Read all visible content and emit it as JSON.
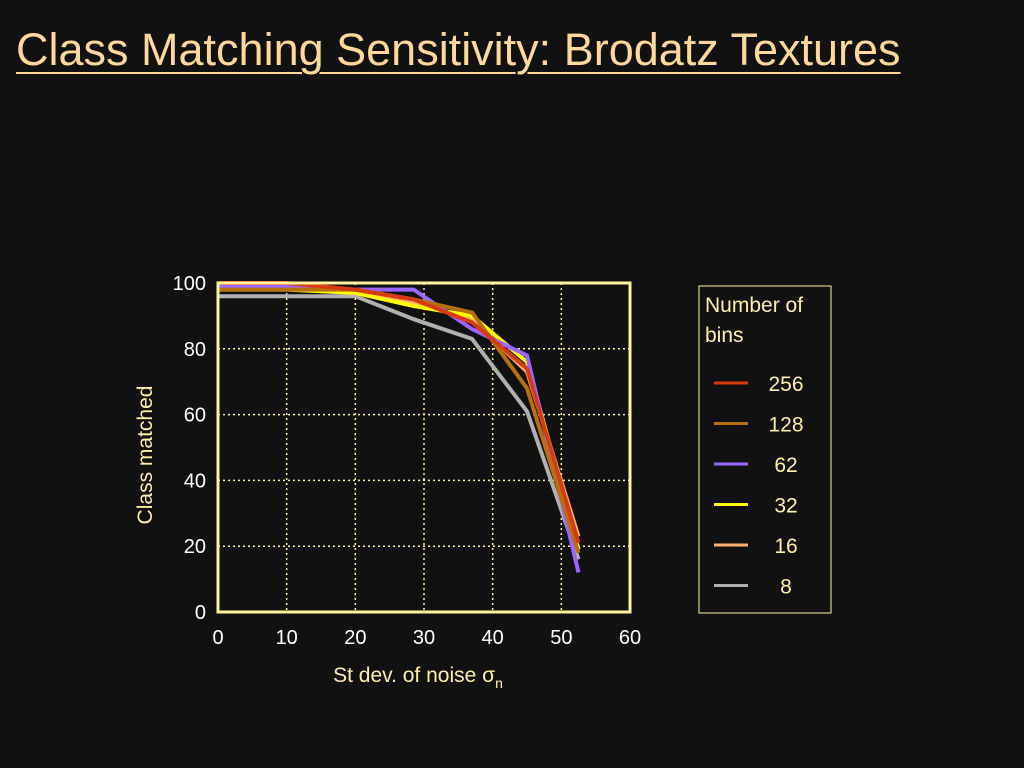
{
  "slide": {
    "title": "Class Matching Sensitivity: Brodatz Textures"
  },
  "colors": {
    "background": "#111111",
    "title": "#ffd89a",
    "frame": "#fff3a0",
    "grid": "#fff3a0",
    "axis_text": "#ffffff",
    "label_text": "#fff0a8"
  },
  "chart_data": {
    "type": "line",
    "xlabel": "St dev. of noise σ",
    "xlabel_subscript": "n",
    "ylabel": "Class matched",
    "xlim": [
      0,
      60
    ],
    "ylim": [
      0,
      100
    ],
    "x_ticks": [
      0,
      10,
      20,
      30,
      40,
      50,
      60
    ],
    "y_ticks": [
      0,
      20,
      40,
      60,
      80,
      100
    ],
    "grid": true,
    "grid_style": "dotted",
    "legend": {
      "title": "Number of bins",
      "title_lines": [
        "Number of",
        "bins"
      ],
      "position": "right"
    },
    "x": [
      0,
      10,
      20,
      28.5,
      37,
      45,
      52.5
    ],
    "series": [
      {
        "name": "256",
        "color": "#d83a10",
        "values": [
          100,
          100,
          98,
          95,
          88,
          74,
          21
        ]
      },
      {
        "name": "128",
        "color": "#b8700a",
        "values": [
          98,
          98,
          98,
          95,
          91,
          68,
          18
        ]
      },
      {
        "name": "62",
        "color": "#9a66ff",
        "values": [
          99,
          99,
          98,
          98,
          86,
          78,
          12
        ]
      },
      {
        "name": "32",
        "color": "#ffff00",
        "values": [
          98,
          98,
          97,
          93,
          90,
          76,
          19
        ]
      },
      {
        "name": "16",
        "color": "#ffb070",
        "values": [
          99,
          99,
          97,
          94,
          89,
          73,
          23
        ]
      },
      {
        "name": "8",
        "color": "#b0b0b0",
        "values": [
          96,
          96,
          96,
          89,
          83,
          61,
          16
        ]
      }
    ]
  }
}
